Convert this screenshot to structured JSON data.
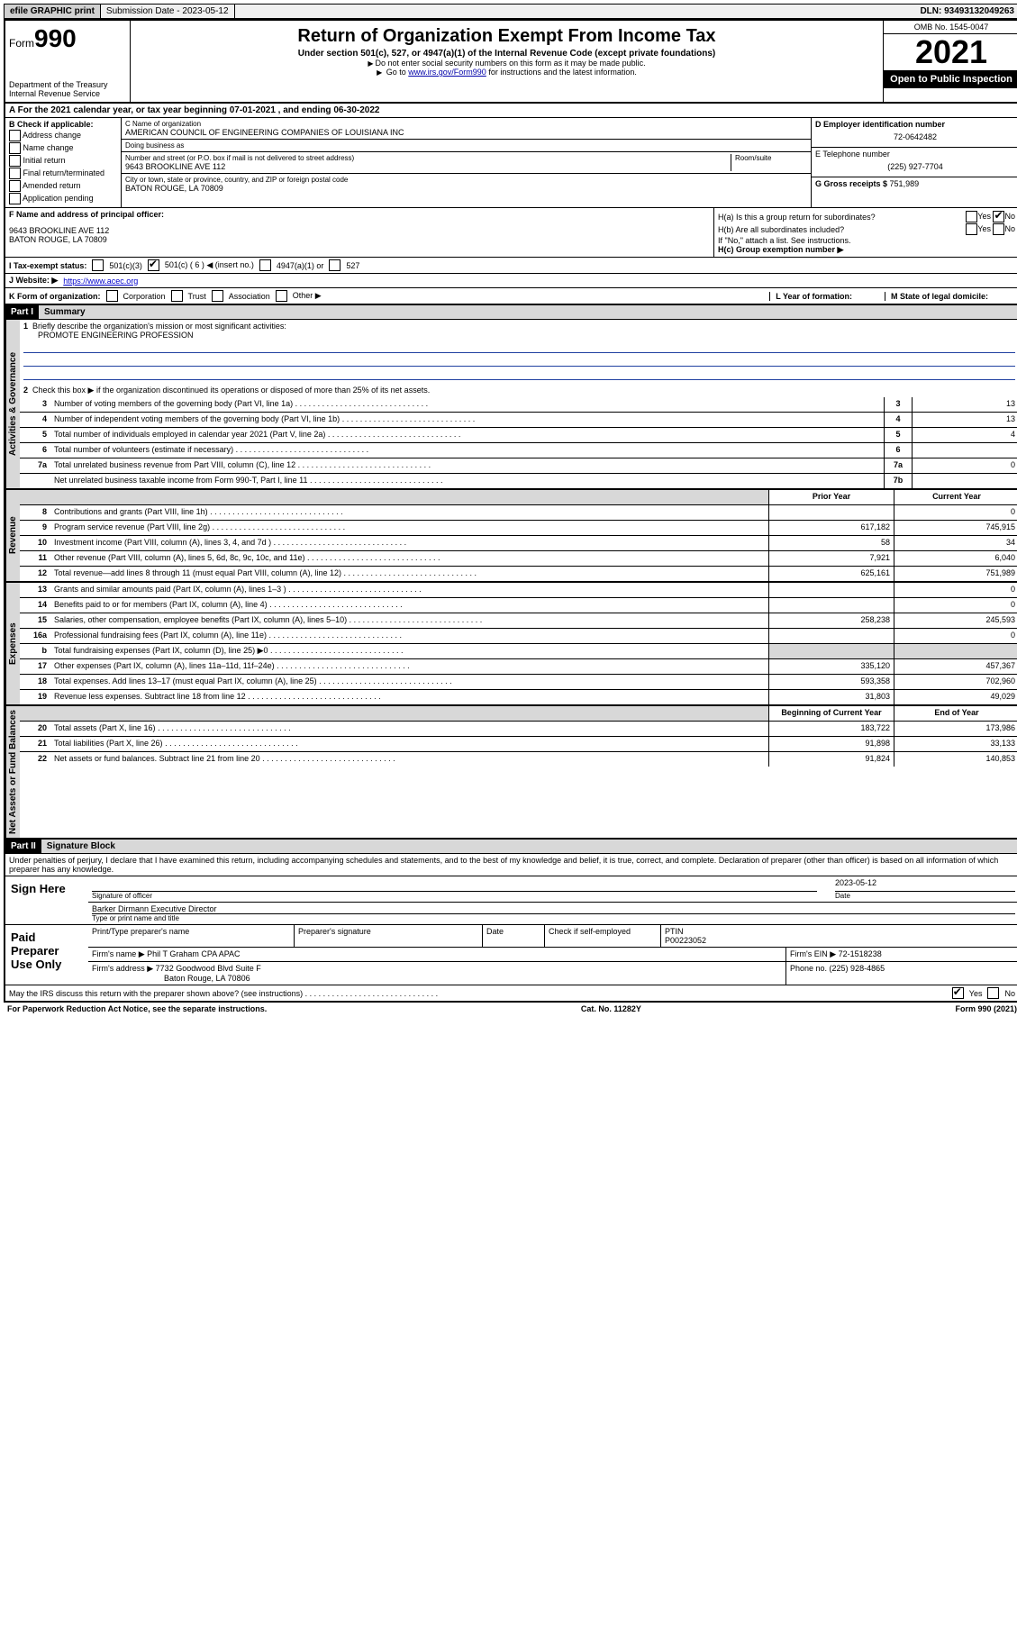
{
  "topbar": {
    "efile": "efile GRAPHIC print",
    "submission_label": "Submission Date - ",
    "submission_date": "2023-05-12",
    "dln_label": "DLN: ",
    "dln": "93493132049263"
  },
  "header": {
    "form_prefix": "Form",
    "form_number": "990",
    "dept": "Department of the Treasury",
    "irs": "Internal Revenue Service",
    "title": "Return of Organization Exempt From Income Tax",
    "subtitle": "Under section 501(c), 527, or 4947(a)(1) of the Internal Revenue Code (except private foundations)",
    "note1": "Do not enter social security numbers on this form as it may be made public.",
    "note2_prefix": "Go to ",
    "note2_link": "www.irs.gov/Form990",
    "note2_suffix": " for instructions and the latest information.",
    "omb": "OMB No. 1545-0047",
    "year": "2021",
    "inspection": "Open to Public Inspection"
  },
  "row_a": "A For the 2021 calendar year, or tax year beginning 07-01-2021    , and ending 06-30-2022",
  "section_b": {
    "header": "B Check if applicable:",
    "items": [
      "Address change",
      "Name change",
      "Initial return",
      "Final return/terminated",
      "Amended return",
      "Application pending"
    ]
  },
  "section_c": {
    "name_label": "C Name of organization",
    "name": "AMERICAN COUNCIL OF ENGINEERING COMPANIES OF LOUISIANA INC",
    "dba_label": "Doing business as",
    "street_label": "Number and street (or P.O. box if mail is not delivered to street address)",
    "room_label": "Room/suite",
    "street": "9643 BROOKLINE AVE 112",
    "city_label": "City or town, state or province, country, and ZIP or foreign postal code",
    "city": "BATON ROUGE, LA  70809"
  },
  "section_d": {
    "ein_label": "D Employer identification number",
    "ein": "72-0642482",
    "phone_label": "E Telephone number",
    "phone": "(225) 927-7704",
    "gross_label": "G Gross receipts $ ",
    "gross": "751,989"
  },
  "section_f": {
    "label": "F  Name and address of principal officer:",
    "line1": "9643 BROOKLINE AVE 112",
    "line2": "BATON ROUGE, LA  70809"
  },
  "section_h": {
    "ha": "H(a)  Is this a group return for subordinates?",
    "hb": "H(b)  Are all subordinates included?",
    "hb_note": "If \"No,\" attach a list. See instructions.",
    "hc": "H(c)  Group exemption number ▶",
    "yes": "Yes",
    "no": "No"
  },
  "row_i": {
    "label": "I   Tax-exempt status:",
    "opt1": "501(c)(3)",
    "opt2": "501(c) ( 6 ) ◀ (insert no.)",
    "opt3": "4947(a)(1) or",
    "opt4": "527"
  },
  "row_j": {
    "label": "J   Website: ▶",
    "value": "https://www.acec.org"
  },
  "row_k": {
    "label": "K Form of organization:",
    "opts": [
      "Corporation",
      "Trust",
      "Association",
      "Other ▶"
    ]
  },
  "row_l": "L Year of formation:",
  "row_m": "M State of legal domicile:",
  "part1": {
    "header": "Part I",
    "title": "Summary",
    "side_gov": "Activities & Governance",
    "side_rev": "Revenue",
    "side_exp": "Expenses",
    "side_net": "Net Assets or Fund Balances",
    "q1": "Briefly describe the organization's mission or most significant activities:",
    "mission": "PROMOTE ENGINEERING PROFESSION",
    "q2": "Check this box ▶        if the organization discontinued its operations or disposed of more than 25% of its net assets.",
    "lines_single": [
      {
        "n": "3",
        "t": "Number of voting members of the governing body (Part VI, line 1a)",
        "b": "3",
        "v": "13"
      },
      {
        "n": "4",
        "t": "Number of independent voting members of the governing body (Part VI, line 1b)",
        "b": "4",
        "v": "13"
      },
      {
        "n": "5",
        "t": "Total number of individuals employed in calendar year 2021 (Part V, line 2a)",
        "b": "5",
        "v": "4"
      },
      {
        "n": "6",
        "t": "Total number of volunteers (estimate if necessary)",
        "b": "6",
        "v": ""
      },
      {
        "n": "7a",
        "t": "Total unrelated business revenue from Part VIII, column (C), line 12",
        "b": "7a",
        "v": "0"
      },
      {
        "n": "",
        "t": "Net unrelated business taxable income from Form 990-T, Part I, line 11",
        "b": "7b",
        "v": ""
      }
    ],
    "col_prior": "Prior Year",
    "col_current": "Current Year",
    "revenue": [
      {
        "n": "8",
        "t": "Contributions and grants (Part VIII, line 1h)",
        "p": "",
        "c": "0"
      },
      {
        "n": "9",
        "t": "Program service revenue (Part VIII, line 2g)",
        "p": "617,182",
        "c": "745,915"
      },
      {
        "n": "10",
        "t": "Investment income (Part VIII, column (A), lines 3, 4, and 7d )",
        "p": "58",
        "c": "34"
      },
      {
        "n": "11",
        "t": "Other revenue (Part VIII, column (A), lines 5, 6d, 8c, 9c, 10c, and 11e)",
        "p": "7,921",
        "c": "6,040"
      },
      {
        "n": "12",
        "t": "Total revenue—add lines 8 through 11 (must equal Part VIII, column (A), line 12)",
        "p": "625,161",
        "c": "751,989"
      }
    ],
    "expenses": [
      {
        "n": "13",
        "t": "Grants and similar amounts paid (Part IX, column (A), lines 1–3 )",
        "p": "",
        "c": "0"
      },
      {
        "n": "14",
        "t": "Benefits paid to or for members (Part IX, column (A), line 4)",
        "p": "",
        "c": "0"
      },
      {
        "n": "15",
        "t": "Salaries, other compensation, employee benefits (Part IX, column (A), lines 5–10)",
        "p": "258,238",
        "c": "245,593"
      },
      {
        "n": "16a",
        "t": "Professional fundraising fees (Part IX, column (A), line 11e)",
        "p": "",
        "c": "0"
      },
      {
        "n": "b",
        "t": "Total fundraising expenses (Part IX, column (D), line 25) ▶0",
        "p": "shade",
        "c": "shade"
      },
      {
        "n": "17",
        "t": "Other expenses (Part IX, column (A), lines 11a–11d, 11f–24e)",
        "p": "335,120",
        "c": "457,367"
      },
      {
        "n": "18",
        "t": "Total expenses. Add lines 13–17 (must equal Part IX, column (A), line 25)",
        "p": "593,358",
        "c": "702,960"
      },
      {
        "n": "19",
        "t": "Revenue less expenses. Subtract line 18 from line 12",
        "p": "31,803",
        "c": "49,029"
      }
    ],
    "col_begin": "Beginning of Current Year",
    "col_end": "End of Year",
    "netassets": [
      {
        "n": "20",
        "t": "Total assets (Part X, line 16)",
        "p": "183,722",
        "c": "173,986"
      },
      {
        "n": "21",
        "t": "Total liabilities (Part X, line 26)",
        "p": "91,898",
        "c": "33,133"
      },
      {
        "n": "22",
        "t": "Net assets or fund balances. Subtract line 21 from line 20",
        "p": "91,824",
        "c": "140,853"
      }
    ]
  },
  "part2": {
    "header": "Part II",
    "title": "Signature Block",
    "declaration": "Under penalties of perjury, I declare that I have examined this return, including accompanying schedules and statements, and to the best of my knowledge and belief, it is true, correct, and complete. Declaration of preparer (other than officer) is based on all information of which preparer has any knowledge.",
    "sign_here": "Sign Here",
    "sig_officer": "Signature of officer",
    "sig_date": "Date",
    "sig_date_val": "2023-05-12",
    "officer_name": "Barker Dirmann Executive Director",
    "officer_label": "Type or print name and title",
    "paid": "Paid Preparer Use Only",
    "prep_name_label": "Print/Type preparer's name",
    "prep_sig_label": "Preparer's signature",
    "date_label": "Date",
    "check_label": "Check        if self-employed",
    "ptin_label": "PTIN",
    "ptin": "P00223052",
    "firm_name_label": "Firm's name    ▶",
    "firm_name": "Phil T Graham CPA APAC",
    "firm_ein_label": "Firm's EIN ▶",
    "firm_ein": "72-1518238",
    "firm_addr_label": "Firm's address ▶",
    "firm_addr": "7732 Goodwood Blvd Suite F",
    "firm_city": "Baton Rouge, LA  70806",
    "firm_phone_label": "Phone no. ",
    "firm_phone": "(225) 928-4865",
    "may_irs": "May the IRS discuss this return with the preparer shown above? (see instructions)"
  },
  "footer": {
    "left": "For Paperwork Reduction Act Notice, see the separate instructions.",
    "mid": "Cat. No. 11282Y",
    "right": "Form 990 (2021)"
  }
}
